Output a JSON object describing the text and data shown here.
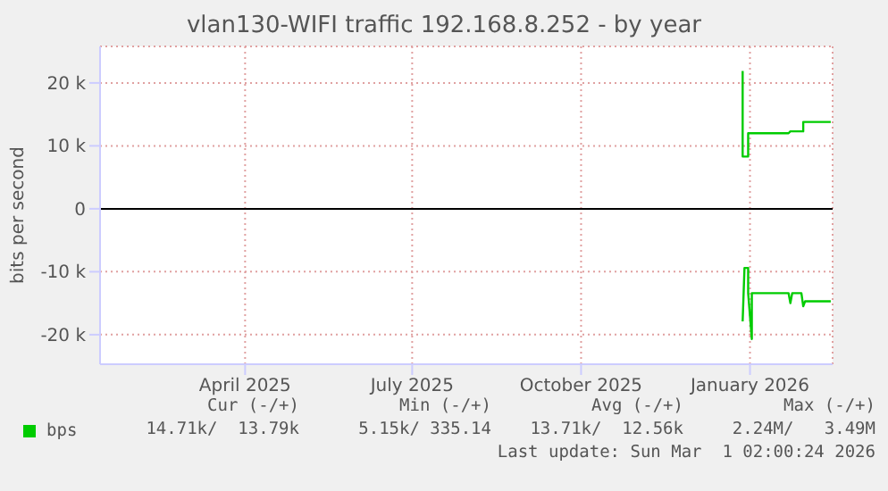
{
  "chart_data": {
    "type": "line",
    "title": "vlan130-WIFI traffic 192.168.8.252 - by year",
    "ylabel": "bits per second",
    "xlim": [
      "2025-01-26",
      "2026-03-01"
    ],
    "xticks": [
      {
        "value": "2025-04-15",
        "label": "April 2025"
      },
      {
        "value": "2025-07-15",
        "label": "July 2025"
      },
      {
        "value": "2025-10-15",
        "label": "October 2025"
      },
      {
        "value": "2026-01-15",
        "label": "January 2026"
      }
    ],
    "ylim": [
      -24700,
      25800
    ],
    "yticks": [
      {
        "value": -20000,
        "label": "-20 k"
      },
      {
        "value": -10000,
        "label": "-10 k"
      },
      0,
      {
        "value": 10000,
        "label": "10 k"
      },
      {
        "value": 20000,
        "label": "20 k"
      }
    ],
    "grid": true,
    "legend": "bottom",
    "marker": "none",
    "line_style": "solid",
    "ref_lines": [
      {
        "axis": "y",
        "value": 0,
        "color": "#000000"
      }
    ],
    "series": [
      {
        "name": "bps",
        "color": "#00cc00",
        "x": [
          "2026-01-11",
          "2026-01-11",
          "2026-01-12",
          "2026-01-14",
          "2026-01-14",
          "2026-01-16",
          "2026-01-26",
          "2026-02-05",
          "2026-02-06",
          "2026-02-13",
          "2026-02-13",
          "2026-02-28"
        ],
        "values": [
          21900,
          8300,
          8300,
          8300,
          12000,
          12000,
          12000,
          12000,
          12300,
          12300,
          13800,
          13800
        ]
      },
      {
        "color": "#00cc00",
        "x": [
          "2026-01-11",
          "2026-01-12",
          "2026-01-12",
          "2026-01-14",
          "2026-01-14",
          "2026-01-16",
          "2026-01-16",
          "2026-02-05",
          "2026-02-06",
          "2026-02-07",
          "2026-02-12",
          "2026-02-13",
          "2026-02-14",
          "2026-02-28"
        ],
        "values": [
          -17900,
          -9400,
          -9400,
          -9400,
          -13400,
          -20700,
          -13400,
          -13400,
          -15000,
          -13400,
          -13400,
          -15500,
          -14700,
          -14700
        ]
      }
    ],
    "annotations": [
      "Cur (-/+)",
      "Min (-/+)",
      "Avg (-/+)",
      "Max (-/+)",
      "14.71k/  13.79k",
      "5.15k/ 335.14",
      "13.71k/  12.56k",
      "2.24M/   3.49M",
      "Last update: Sun Mar  1 02:00:24 2026"
    ]
  }
}
